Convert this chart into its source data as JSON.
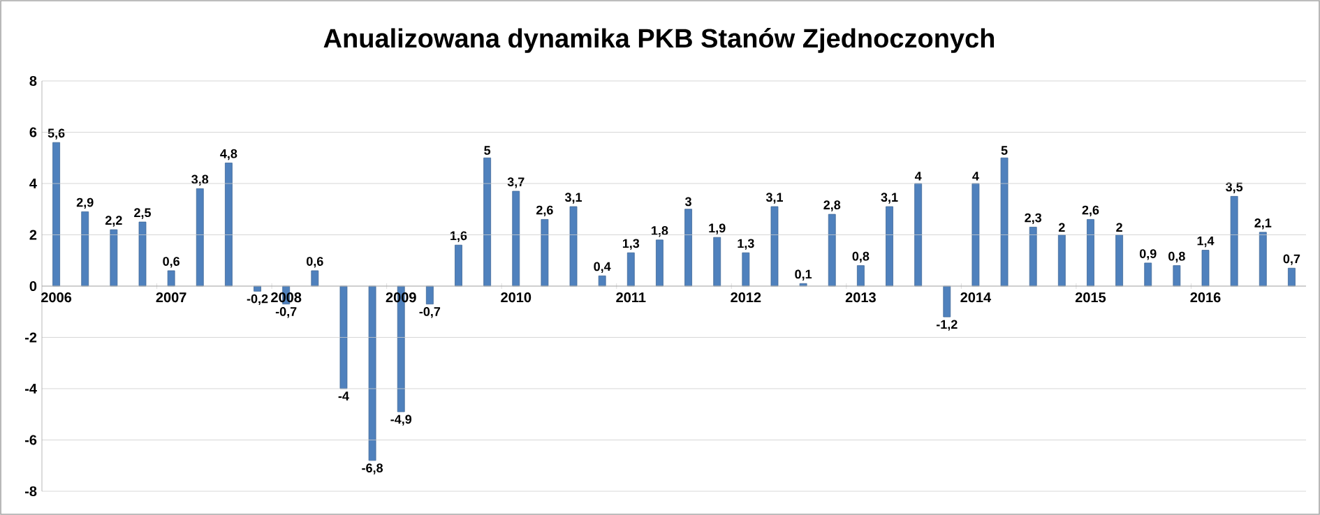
{
  "chart_data": {
    "type": "bar",
    "title": "Anualizowana dynamika PKB Stanów Zjednoczonych",
    "categories": [
      "2006",
      null,
      null,
      null,
      "2007",
      null,
      null,
      null,
      "2008",
      null,
      null,
      null,
      "2009",
      null,
      null,
      null,
      "2010",
      null,
      null,
      null,
      "2011",
      null,
      null,
      null,
      "2012",
      null,
      null,
      null,
      "2013",
      null,
      null,
      null,
      "2014",
      null,
      null,
      null,
      "2015",
      null,
      null,
      null,
      "2016",
      null,
      null,
      null
    ],
    "values": [
      5.6,
      2.9,
      2.2,
      2.5,
      0.6,
      3.8,
      4.8,
      -0.2,
      -0.7,
      0.6,
      -4,
      -6.8,
      -4.9,
      -0.7,
      1.6,
      5,
      3.7,
      2.6,
      3.1,
      0.4,
      1.3,
      1.8,
      3,
      1.9,
      1.3,
      3.1,
      0.1,
      2.8,
      0.8,
      3.1,
      4,
      -1.2,
      4,
      5,
      2.3,
      2,
      2.6,
      2,
      0.9,
      0.8,
      1.4,
      3.5,
      2.1,
      0.7
    ],
    "value_labels": [
      "5,6",
      "2,9",
      "2,2",
      "2,5",
      "0,6",
      "3,8",
      "4,8",
      "-0,2",
      "-0,7",
      "0,6",
      "-4",
      "-6,8",
      "-4,9",
      "-0,7",
      "1,6",
      "5",
      "3,7",
      "2,6",
      "3,1",
      "0,4",
      "1,3",
      "1,8",
      "3",
      "1,9",
      "1,3",
      "3,1",
      "0,1",
      "2,8",
      "0,8",
      "3,1",
      "4",
      "-1,2",
      "4",
      "5",
      "2,3",
      "2",
      "2,6",
      "2",
      "0,9",
      "0,8",
      "1,4",
      "3,5",
      "2,1",
      "0,7"
    ],
    "color": "#4f81bd",
    "ylim": [
      -8,
      8
    ],
    "yticks": [
      -8,
      -6,
      -4,
      -2,
      0,
      2,
      4,
      6,
      8
    ],
    "grid": "y"
  }
}
